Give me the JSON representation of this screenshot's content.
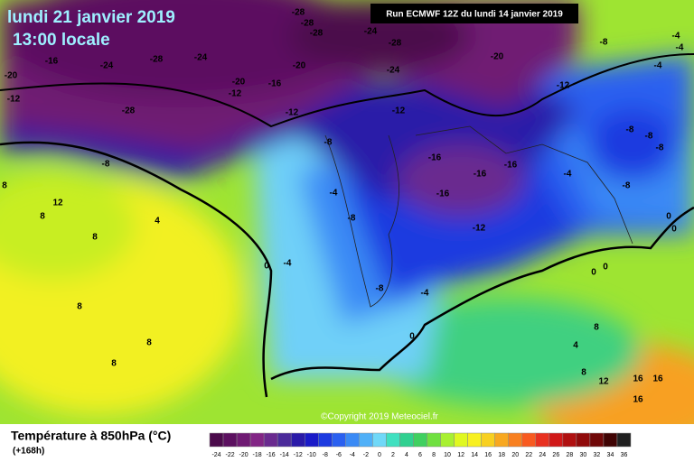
{
  "header": {
    "date": "lundi 21 janvier 2019",
    "time": "13:00 locale",
    "run": "Run ECMWF 12Z du lundi 14 janvier 2019"
  },
  "map": {
    "labels": [
      -28,
      -28,
      -28,
      -24,
      -28,
      -24,
      -20,
      -12,
      -8,
      -4,
      -4,
      -4,
      -16,
      -24,
      -28,
      -24,
      -20,
      -20,
      -16,
      -12,
      -12,
      -20,
      -12,
      -28,
      -12,
      -8,
      -16,
      -16,
      -16,
      -16,
      -12,
      -8,
      -8,
      -8,
      -8,
      -4,
      -8,
      8,
      12,
      4,
      8,
      8,
      -4,
      -8,
      0,
      -4,
      -8,
      -4,
      0,
      0,
      0,
      0,
      0,
      8,
      8,
      8,
      4,
      8,
      8,
      12,
      16,
      16,
      16
    ]
  },
  "copyright": "©Copyright 2019 Meteociel.fr",
  "legend": {
    "title": "Température à 850hPa (°C)",
    "lead": "(+168h)",
    "scale": {
      "ticks": [
        -24,
        -22,
        -20,
        -18,
        -16,
        -14,
        -12,
        -10,
        -8,
        -6,
        -4,
        -2,
        0,
        2,
        4,
        6,
        8,
        10,
        12,
        14,
        16,
        18,
        20,
        22,
        24,
        26,
        28,
        30,
        32,
        34,
        36
      ],
      "colors": [
        "#4b0a4b",
        "#5c1060",
        "#6f1a73",
        "#822585",
        "#6a2a8f",
        "#4b2a9a",
        "#2a1aa8",
        "#1a1ac8",
        "#1c3ae0",
        "#2a60f0",
        "#3a8af5",
        "#50b0f8",
        "#70d8f8",
        "#40e0c0",
        "#30d090",
        "#40d060",
        "#70e040",
        "#a8f030",
        "#e0f820",
        "#f8f020",
        "#f8d020",
        "#f8a820",
        "#f88020",
        "#f85a20",
        "#e83020",
        "#d01818",
        "#b01010",
        "#900a0a",
        "#700808",
        "#400404",
        "#202020"
      ]
    }
  }
}
